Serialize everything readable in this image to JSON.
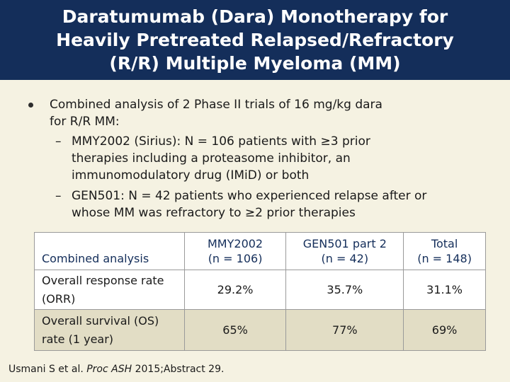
{
  "title": {
    "lines": [
      "Daratumumab (Dara) Monotherapy for",
      "Heavily Pretreated Relapsed/Refractory",
      "(R/R) Multiple Myeloma (MM)"
    ]
  },
  "bullets": {
    "main": {
      "line1": "Combined analysis of 2 Phase II trials of 16 mg/kg dara",
      "line2": "for R/R MM:"
    },
    "sub": [
      {
        "dash": "–",
        "lines": [
          "MMY2002 (Sirius): N = 106 patients with ≥3 prior",
          "therapies including a proteasome inhibitor, an",
          "immunomodulatory drug (IMiD) or both"
        ]
      },
      {
        "dash": "–",
        "lines": [
          "GEN501: N = 42 patients who experienced relapse after or",
          "whose MM was refractory to ≥2 prior therapies"
        ]
      }
    ]
  },
  "table": {
    "corner": "Combined analysis",
    "columns": [
      {
        "line1": "MMY2002",
        "line2": "(n = 106)"
      },
      {
        "line1": "GEN501 part 2",
        "line2": "(n = 42)"
      },
      {
        "line1": "Total",
        "line2": "(n = 148)"
      }
    ],
    "rows": [
      {
        "label1": "Overall response rate",
        "label2": "(ORR)",
        "values": [
          "29.2%",
          "35.7%",
          "31.1%"
        ]
      },
      {
        "label1": "Overall survival (OS)",
        "label2": "rate (1 year)",
        "values": [
          "65%",
          "77%",
          "69%"
        ]
      }
    ]
  },
  "footnote": {
    "authors": "Usmani S et al. ",
    "journal": "Proc ASH",
    "rest": " 2015;Abstract 29."
  }
}
